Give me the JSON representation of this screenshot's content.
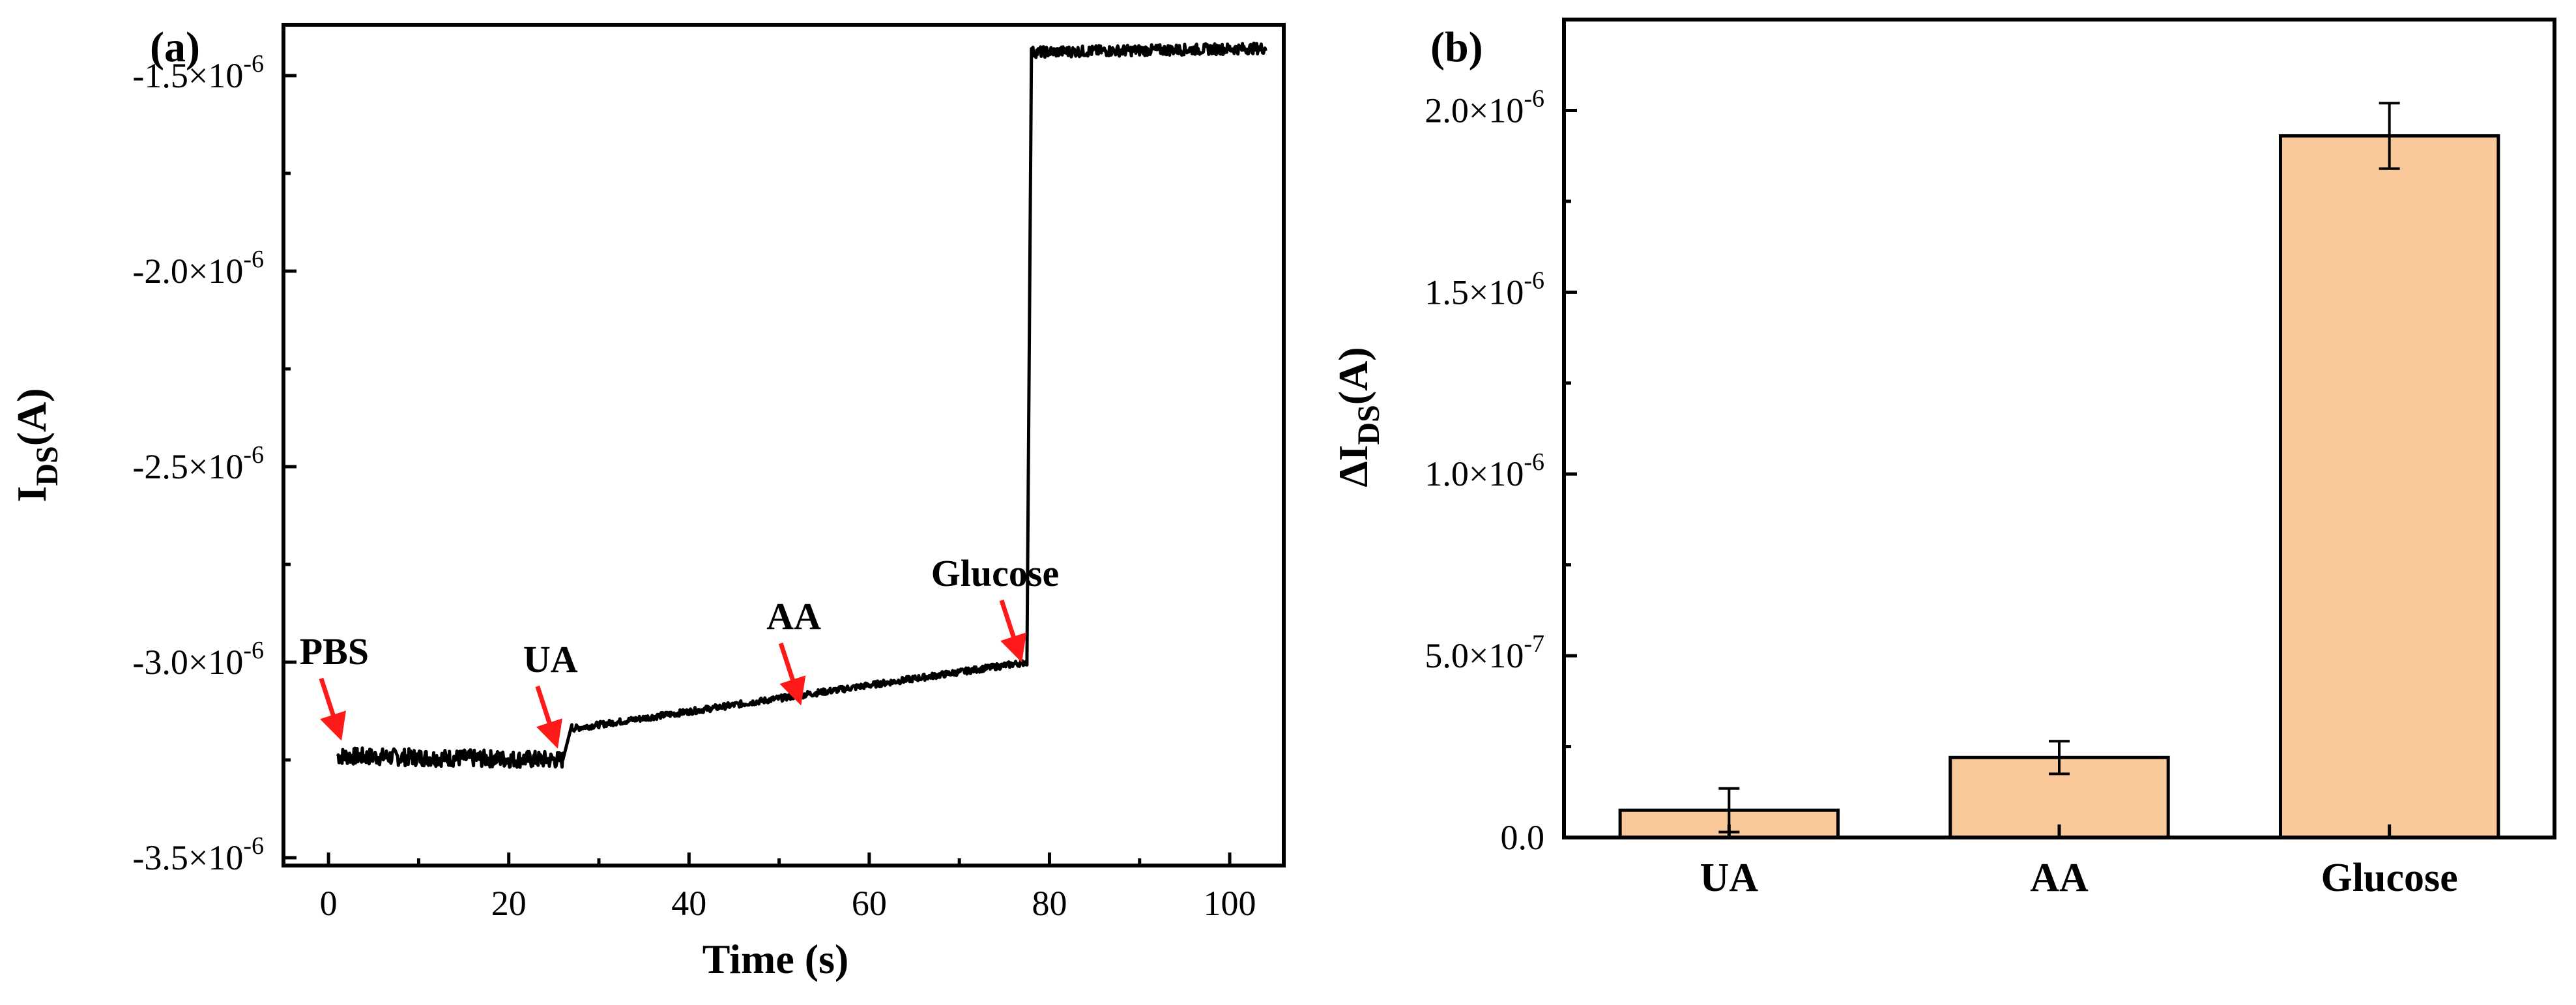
{
  "chart_data": [
    {
      "id": "a",
      "panel_label": "(a)",
      "type": "line",
      "xlabel": "Time (s)",
      "ylabel": "I",
      "ylabel_sub": "DS",
      "ylabel_unit": "(A)",
      "xlim": [
        -5,
        106
      ],
      "ylim": [
        -3.52e-06,
        -1.37e-06
      ],
      "xticks": [
        0,
        20,
        40,
        60,
        80,
        100
      ],
      "xtick_labels": [
        "0",
        "20",
        "40",
        "60",
        "80",
        "100"
      ],
      "yticks": [
        -1.5e-06,
        -2e-06,
        -2.5e-06,
        -3e-06,
        -3.5e-06
      ],
      "ytick_labels": [
        {
          "mant": "-1.5×10",
          "exp": "-6"
        },
        {
          "mant": "-2.0×10",
          "exp": "-6"
        },
        {
          "mant": "-2.5×10",
          "exp": "-6"
        },
        {
          "mant": "-3.0×10",
          "exp": "-6"
        },
        {
          "mant": "-3.5×10",
          "exp": "-6"
        }
      ],
      "segments": [
        {
          "t0": 1,
          "t1": 26,
          "v0": -3.24e-06,
          "v1": -3.25e-06,
          "noise": 2.2e-08
        },
        {
          "t0": 26,
          "t1": 27,
          "v0": -3.25e-06,
          "v1": -3.16e-06,
          "noise": 0
        },
        {
          "t0": 27,
          "t1": 77.5,
          "v0": -3.17e-06,
          "v1": -3e-06,
          "noise": 8e-09
        },
        {
          "t0": 77.5,
          "t1": 78,
          "v0": -3e-06,
          "v1": -1.44e-06,
          "noise": 0
        },
        {
          "t0": 78,
          "t1": 104,
          "v0": -1.44e-06,
          "v1": -1.43e-06,
          "noise": 1.4e-08
        }
      ],
      "annotations": [
        {
          "label": "PBS",
          "x": 1.5,
          "y": -3.2e-06
        },
        {
          "label": "UA",
          "x": 25.5,
          "y": -3.22e-06
        },
        {
          "label": "AA",
          "x": 52.5,
          "y": -3.11e-06
        },
        {
          "label": "Glucose",
          "x": 77,
          "y": -3e-06
        }
      ],
      "arrow_color": "#ff1a1a",
      "line_color": "#000000"
    },
    {
      "id": "b",
      "panel_label": "(b)",
      "type": "bar",
      "xlabel": "",
      "ylabel": "ΔI",
      "ylabel_sub": "DS",
      "ylabel_unit": "(A)",
      "categories": [
        "UA",
        "AA",
        "Glucose"
      ],
      "values": [
        7.5e-08,
        2.2e-07,
        1.93e-06
      ],
      "errors": [
        6e-08,
        4.5e-08,
        9e-08
      ],
      "ylim": [
        0,
        2.25e-06
      ],
      "yticks": [
        0,
        5e-07,
        1e-06,
        1.5e-06,
        2e-06
      ],
      "ytick_labels": [
        {
          "mant": "0.0",
          "exp": ""
        },
        {
          "mant": "5.0×10",
          "exp": "-7"
        },
        {
          "mant": "1.0×10",
          "exp": "-6"
        },
        {
          "mant": "1.5×10",
          "exp": "-6"
        },
        {
          "mant": "2.0×10",
          "exp": "-6"
        }
      ],
      "bar_color": "#f9c99b"
    }
  ]
}
